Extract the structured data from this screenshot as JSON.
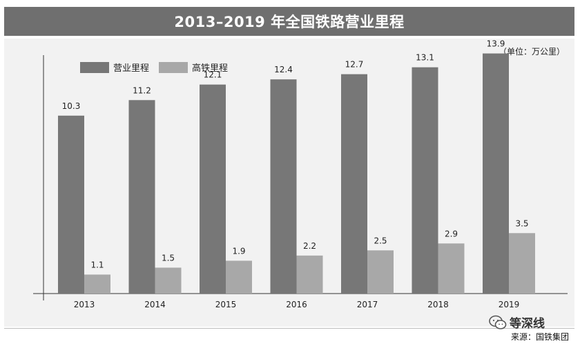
{
  "title": "2013–2019 年全国铁路营业里程",
  "unit_label": "（单位：万公里）",
  "source_label": "来源：国铁集团",
  "watermark": "等深线",
  "colors": {
    "title_bar": "#6f6f6f",
    "panel": "#f2f2f2",
    "series_1": "#777777",
    "series_2": "#a8a8a8"
  },
  "chart_data": {
    "type": "bar",
    "title": "2013–2019 年全国铁路营业里程",
    "categories": [
      "2013",
      "2014",
      "2015",
      "2016",
      "2017",
      "2018",
      "2019"
    ],
    "series": [
      {
        "name": "营业里程",
        "values": [
          10.3,
          11.2,
          12.1,
          12.4,
          12.7,
          13.1,
          13.9
        ]
      },
      {
        "name": "高铁里程",
        "values": [
          1.1,
          1.5,
          1.9,
          2.2,
          2.5,
          2.9,
          3.5
        ]
      }
    ],
    "labels": [
      [
        "10.3",
        "11.2",
        "12.1",
        "12.4",
        "12.7",
        "13.1",
        "13.9"
      ],
      [
        "1.1",
        "1.5",
        "1.9",
        "2.2",
        "2.5",
        "2.9",
        "3.5"
      ]
    ],
    "ylim": [
      0,
      15
    ],
    "legend_position": "top-left",
    "grid": false
  }
}
